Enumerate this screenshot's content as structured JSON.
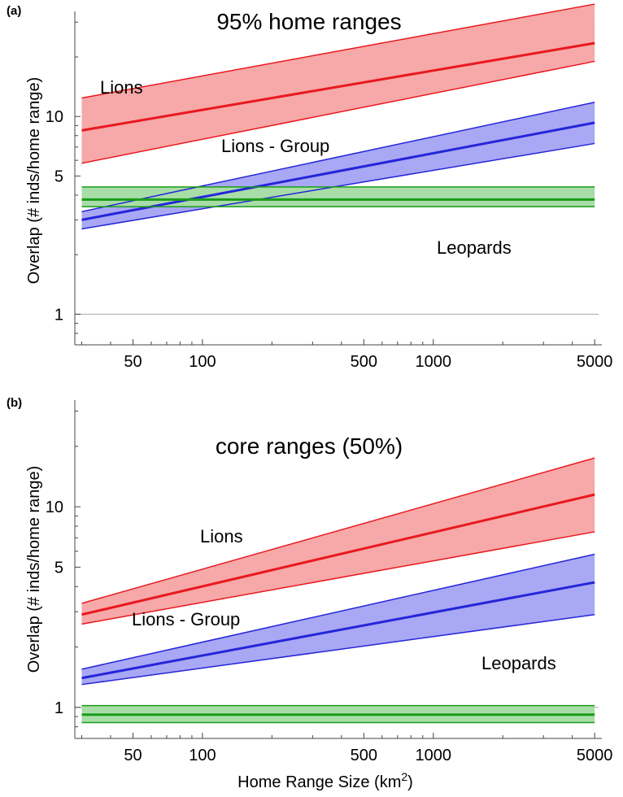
{
  "figure": {
    "xlabel": "Home Range Size (km",
    "xlabel_sup": "2",
    "xlabel_close": ")"
  },
  "chart_data": [
    {
      "panel": "(a)",
      "type": "line",
      "title": "95% home ranges",
      "ylabel": "Overlap (# inds/home range)",
      "x_scale": "log",
      "y_scale": "log",
      "xlim": [
        28,
        5200
      ],
      "ylim": [
        0.7,
        34
      ],
      "x_ticks": [
        50,
        100,
        500,
        1000,
        5000
      ],
      "x_tick_labels": [
        "50",
        "100",
        "500",
        "1000",
        "5000"
      ],
      "y_ticks": [
        1,
        5,
        10
      ],
      "y_tick_labels": [
        "1",
        "5",
        "10"
      ],
      "reference_line_y": 1,
      "series": [
        {
          "name": "Lions",
          "color": "#e8191f",
          "fill": "#f7a8a8",
          "label": "Lions",
          "x": [
            30,
            5000
          ],
          "y": [
            8.5,
            23.5
          ],
          "lower": [
            5.8,
            19.0
          ],
          "upper": [
            12.4,
            37.0
          ]
        },
        {
          "name": "Lions - Group",
          "color": "#2525d9",
          "fill": "#a8a8f4",
          "label": "Lions - Group",
          "x": [
            30,
            5000
          ],
          "y": [
            3.0,
            9.3
          ],
          "lower": [
            2.7,
            7.3
          ],
          "upper": [
            3.3,
            11.8
          ]
        },
        {
          "name": "Leopards",
          "color": "#1a9c1a",
          "fill": "#a8dda8",
          "label": "Leopards",
          "x": [
            30,
            5000
          ],
          "y": [
            3.8,
            3.8
          ],
          "lower": [
            3.5,
            3.5
          ],
          "upper": [
            4.4,
            4.4
          ]
        }
      ]
    },
    {
      "panel": "(b)",
      "type": "line",
      "title": "core ranges (50%)",
      "ylabel": "Overlap (# inds/home range)",
      "x_scale": "log",
      "y_scale": "log",
      "xlim": [
        28,
        5200
      ],
      "ylim": [
        0.7,
        34
      ],
      "x_ticks": [
        50,
        100,
        500,
        1000,
        5000
      ],
      "x_tick_labels": [
        "50",
        "100",
        "500",
        "1000",
        "5000"
      ],
      "y_ticks": [
        1,
        5,
        10
      ],
      "y_tick_labels": [
        "1",
        "5",
        "10"
      ],
      "reference_line_y": 1,
      "series": [
        {
          "name": "Lions",
          "color": "#e8191f",
          "fill": "#f7a8a8",
          "label": "Lions",
          "x": [
            30,
            5000
          ],
          "y": [
            2.9,
            11.5
          ],
          "lower": [
            2.6,
            7.5
          ],
          "upper": [
            3.3,
            17.5
          ]
        },
        {
          "name": "Lions - Group",
          "color": "#2525d9",
          "fill": "#a8a8f4",
          "label": "Lions - Group",
          "x": [
            30,
            5000
          ],
          "y": [
            1.4,
            4.2
          ],
          "lower": [
            1.3,
            2.9
          ],
          "upper": [
            1.55,
            5.8
          ]
        },
        {
          "name": "Leopards",
          "color": "#1a9c1a",
          "fill": "#a8dda8",
          "label": "Leopards",
          "x": [
            30,
            5000
          ],
          "y": [
            0.92,
            0.92
          ],
          "lower": [
            0.84,
            0.84
          ],
          "upper": [
            1.02,
            1.02
          ]
        }
      ]
    }
  ]
}
